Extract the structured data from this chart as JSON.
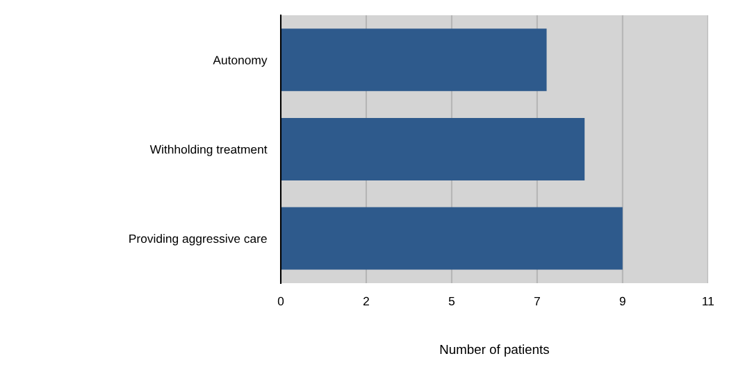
{
  "chart_data": {
    "type": "bar",
    "orientation": "horizontal",
    "categories": [
      "Autonomy",
      "Withholding treatment",
      "Providing aggressive care"
    ],
    "values": [
      7,
      8,
      9
    ],
    "color": "#2e5a8c",
    "xlabel": "Number of patients",
    "xlim": [
      0,
      11.25
    ],
    "xticks": [
      0,
      {
        "value": 2.25,
        "label": "2"
      },
      {
        "value": 4.5,
        "label": "5"
      },
      {
        "value": 6.75,
        "label": "7"
      },
      9,
      {
        "value": 11.25,
        "label": "11"
      }
    ],
    "grid": "x"
  }
}
